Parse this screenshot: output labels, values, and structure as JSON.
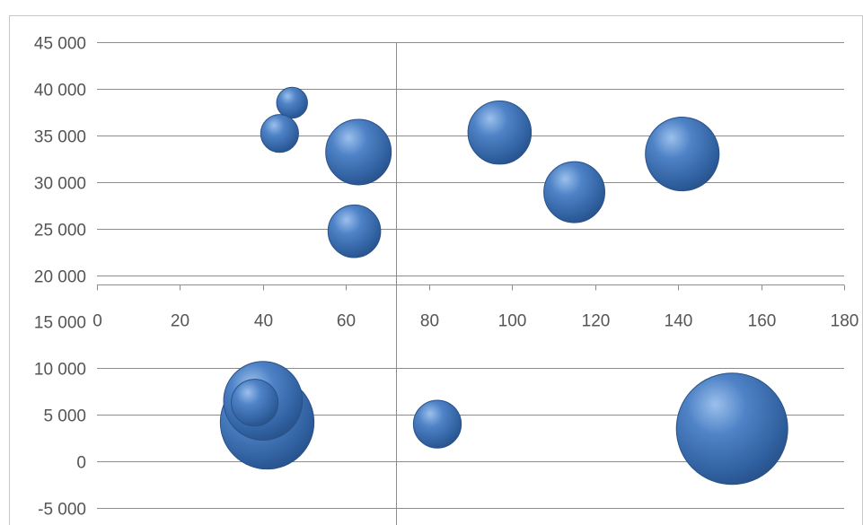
{
  "chart_data": {
    "type": "scatter",
    "variant": "bubble",
    "title": "",
    "xlabel": "",
    "ylabel": "",
    "xlim": [
      0,
      180
    ],
    "ylim": [
      -5000,
      45000
    ],
    "x_ticks": [
      "0",
      "20",
      "40",
      "60",
      "80",
      "100",
      "120",
      "140",
      "160",
      "180"
    ],
    "x_tick_values": [
      0,
      20,
      40,
      60,
      80,
      100,
      120,
      140,
      160,
      180
    ],
    "y_ticks": [
      "45 000",
      "40 000",
      "35 000",
      "30 000",
      "25 000",
      "20 000",
      "15 000",
      "10 000",
      "5 000",
      "0",
      "-5 000"
    ],
    "y_tick_values": [
      45000,
      40000,
      35000,
      30000,
      25000,
      20000,
      15000,
      10000,
      5000,
      0,
      -5000
    ],
    "x_axis_crosses_y": 15000,
    "y_axis_crosses_x": 72,
    "grid": true,
    "legend": "none",
    "bubble_color": "#3d6db0",
    "series": [
      {
        "points": [
          {
            "x": 47,
            "y": 38500,
            "size": 1
          },
          {
            "x": 44,
            "y": 35200,
            "size": 1.5
          },
          {
            "x": 63,
            "y": 33200,
            "size": 4.5
          },
          {
            "x": 62,
            "y": 24700,
            "size": 2.9
          },
          {
            "x": 97,
            "y": 35300,
            "size": 4.2
          },
          {
            "x": 115,
            "y": 28900,
            "size": 3.9
          },
          {
            "x": 141,
            "y": 33000,
            "size": 5.7
          },
          {
            "x": 41,
            "y": 4200,
            "size": 9.2
          },
          {
            "x": 40,
            "y": 6500,
            "size": 6.5
          },
          {
            "x": 38,
            "y": 6300,
            "size": 2.3
          },
          {
            "x": 82,
            "y": 4000,
            "size": 2.4
          },
          {
            "x": 153,
            "y": 3500,
            "size": 13
          }
        ]
      }
    ]
  }
}
